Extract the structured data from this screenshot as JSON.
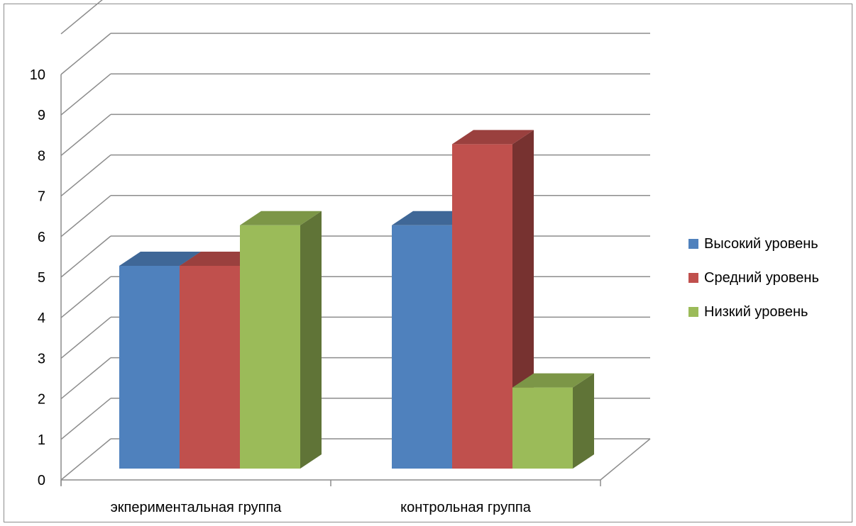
{
  "chart_data": {
    "type": "bar",
    "title": "",
    "xlabel": "",
    "ylabel": "",
    "ylim": [
      0,
      10
    ],
    "yticks": [
      "0",
      "1",
      "2",
      "3",
      "4",
      "5",
      "6",
      "7",
      "8",
      "9",
      "10"
    ],
    "categories": [
      "экпериментальная группа",
      "контрольная группа"
    ],
    "series": [
      {
        "name": "Высокий уровень",
        "values": [
          5,
          6
        ],
        "color": "#4f81bd"
      },
      {
        "name": "Средний уровень",
        "values": [
          5,
          8
        ],
        "color": "#c0504d"
      },
      {
        "name": "Низкий уровень",
        "values": [
          6,
          2
        ],
        "color": "#9bbb59"
      }
    ],
    "grid": true,
    "legend": "right",
    "style": "3d-clustered-column"
  }
}
